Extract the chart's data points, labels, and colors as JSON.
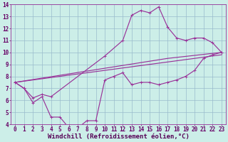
{
  "bg_color": "#cceee8",
  "grid_color": "#99bbcc",
  "line_color": "#993399",
  "marker_color": "#993399",
  "xlim": [
    -0.5,
    23.5
  ],
  "ylim": [
    4,
    14
  ],
  "xlabel": "Windchill (Refroidissement éolien,°C)",
  "xlabel_fontsize": 6.5,
  "xticks": [
    0,
    1,
    2,
    3,
    4,
    5,
    6,
    7,
    8,
    9,
    10,
    11,
    12,
    13,
    14,
    15,
    16,
    17,
    18,
    19,
    20,
    21,
    22,
    23
  ],
  "yticks": [
    4,
    5,
    6,
    7,
    8,
    9,
    10,
    11,
    12,
    13,
    14
  ],
  "tick_fontsize": 5.5,
  "line1_x": [
    0,
    1,
    2,
    3,
    4,
    5,
    6,
    7,
    8,
    9,
    10,
    11,
    12,
    13,
    14,
    15,
    16,
    17,
    18,
    19,
    20,
    21,
    22,
    23
  ],
  "line1_y": [
    7.5,
    7.0,
    5.8,
    6.3,
    4.6,
    4.6,
    3.7,
    3.7,
    4.3,
    4.3,
    7.7,
    8.0,
    8.3,
    7.3,
    7.5,
    7.5,
    7.3,
    7.5,
    7.7,
    8.0,
    8.5,
    9.5,
    9.8,
    10.0
  ],
  "line2_x": [
    0,
    1,
    2,
    3,
    4,
    10,
    12,
    13,
    14,
    15,
    16,
    17,
    18,
    19,
    20,
    21,
    22,
    23
  ],
  "line2_y": [
    7.5,
    7.0,
    6.2,
    6.5,
    6.3,
    9.7,
    11.0,
    13.1,
    13.5,
    13.3,
    13.8,
    12.1,
    11.2,
    11.0,
    11.2,
    11.2,
    10.8,
    10.0
  ],
  "line3_x": [
    0,
    23
  ],
  "line3_y": [
    7.5,
    9.8
  ],
  "line4_x": [
    0,
    17,
    23
  ],
  "line4_y": [
    7.5,
    9.5,
    10.0
  ]
}
